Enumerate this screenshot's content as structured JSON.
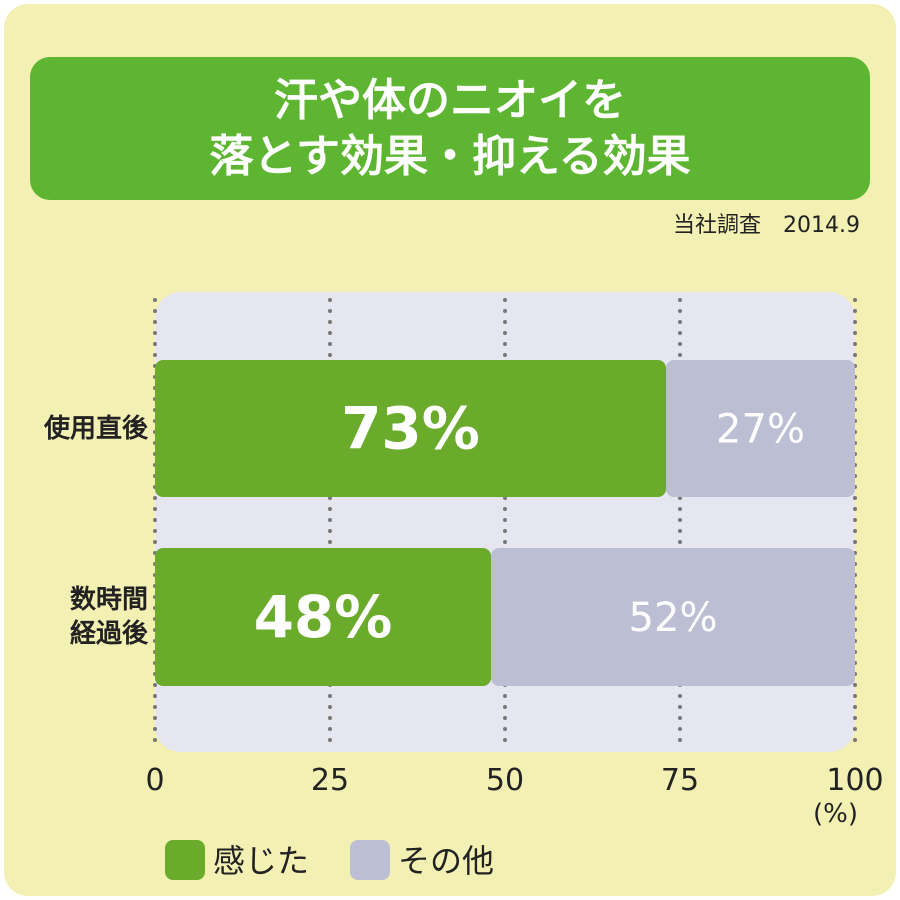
{
  "chart_data": {
    "type": "stacked_barh",
    "title": "汗や体のニオイを\n落とす効果・抑える効果",
    "subtitle": "当社調査　2014.9",
    "categories": [
      "使用直後",
      "数時間\n経過後"
    ],
    "series": [
      {
        "name": "感じた",
        "color": "#6aab2c",
        "values": [
          73,
          48
        ],
        "value_labels": [
          "73%",
          "48%"
        ]
      },
      {
        "name": "その他",
        "color": "#bcbfd4",
        "values": [
          27,
          52
        ],
        "value_labels": [
          "27%",
          "52%"
        ]
      }
    ],
    "xlim": [
      0,
      100
    ],
    "xticks": [
      0,
      25,
      50,
      75,
      100
    ],
    "xlabel": "(%)",
    "grid": true
  }
}
